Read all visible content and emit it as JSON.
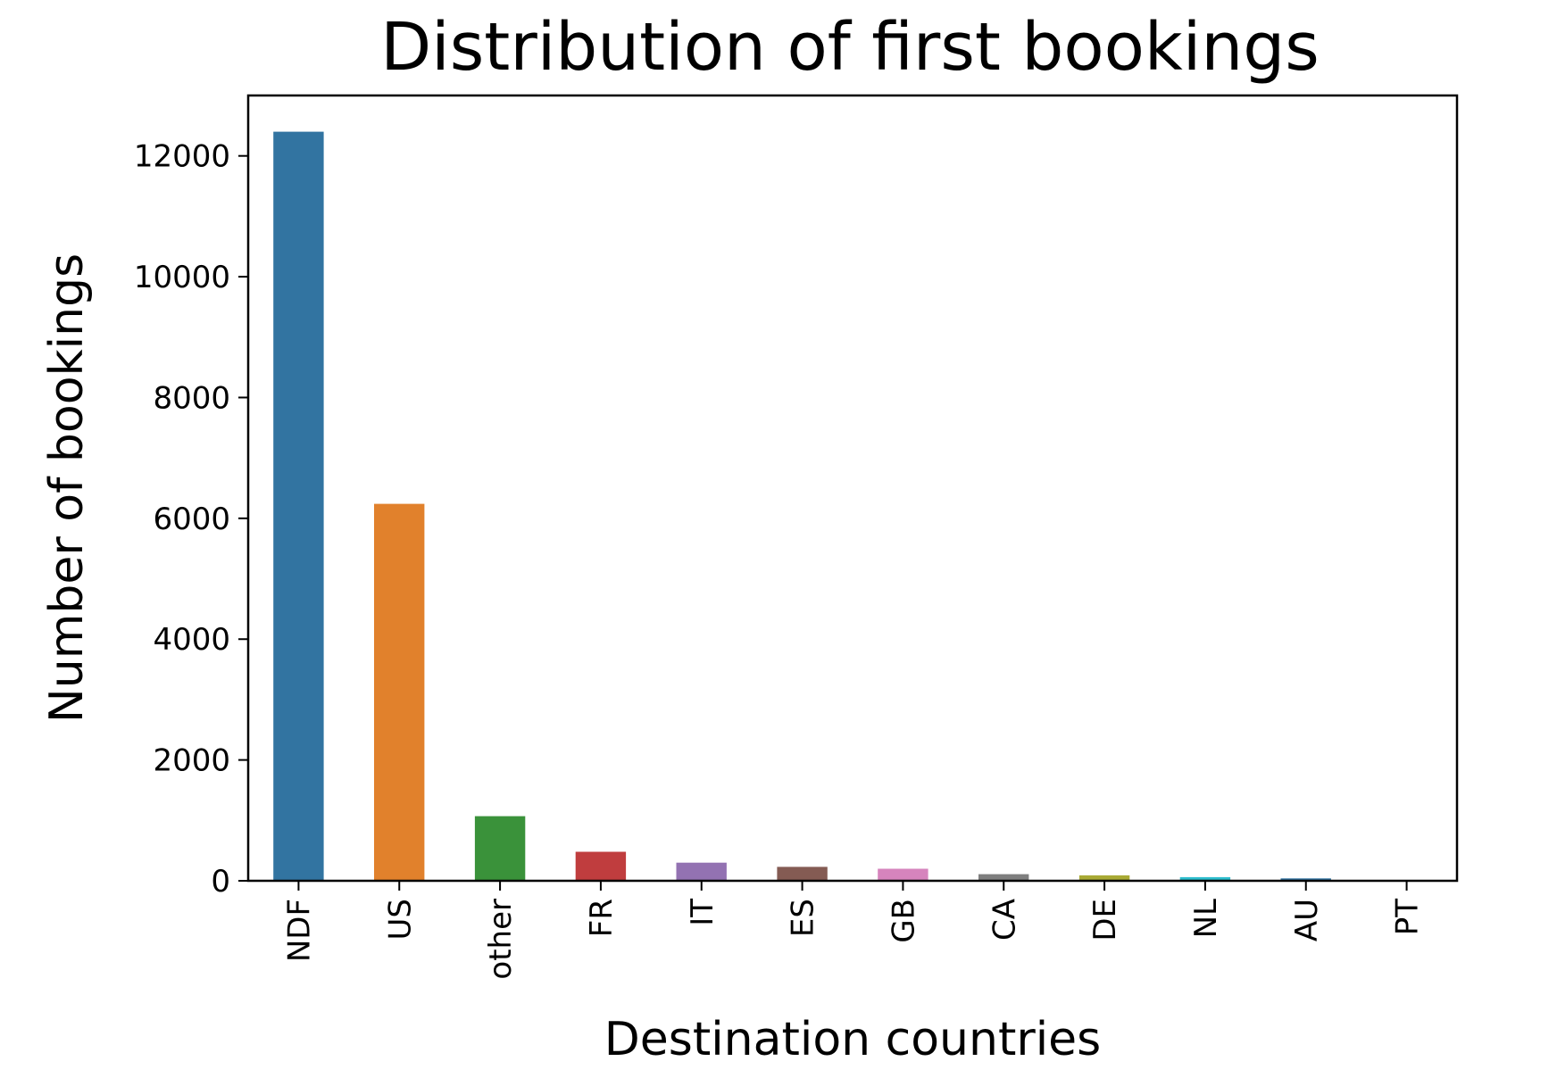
{
  "chart_data": {
    "type": "bar",
    "title": "Distribution of first bookings",
    "xlabel": "Destination countries",
    "ylabel": "Number of bookings",
    "categories": [
      "NDF",
      "US",
      "other",
      "FR",
      "IT",
      "ES",
      "GB",
      "CA",
      "DE",
      "NL",
      "AU",
      "PT"
    ],
    "values": [
      12400,
      6240,
      1070,
      480,
      300,
      230,
      200,
      110,
      90,
      60,
      40,
      10
    ],
    "ylim": [
      0,
      13000
    ],
    "yticks": [
      "0",
      "2000",
      "4000",
      "6000",
      "8000",
      "10000",
      "12000"
    ],
    "colors": [
      "#3274a1",
      "#e1812c",
      "#3a923a",
      "#c03d3e",
      "#9372b2",
      "#845b53",
      "#d684bd",
      "#7f7f7f",
      "#a9aa35",
      "#2ebece",
      "#3274a1",
      "#e1812c"
    ],
    "grid": false,
    "legend": "none"
  }
}
